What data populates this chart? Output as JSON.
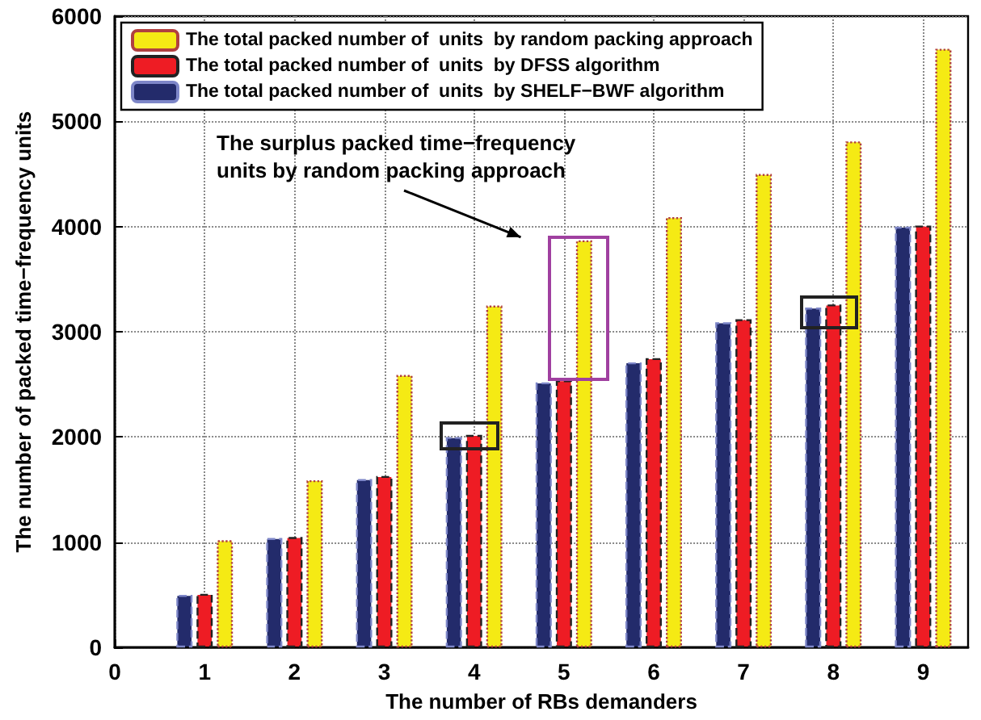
{
  "chart_data": {
    "type": "bar",
    "xlabel": "The number of RBs demanders",
    "ylabel": "The number of packed time−frequency units",
    "x": [
      1,
      2,
      3,
      4,
      5,
      6,
      7,
      8,
      9
    ],
    "series": [
      {
        "name": "The total packed number of  units  by SHELF−BWF algorithm",
        "color": "#232b6b",
        "values": [
          500,
          1040,
          1600,
          2000,
          2520,
          2710,
          3090,
          3230,
          4000
        ]
      },
      {
        "name": "The total packed number of  units  by DFSS algorithm",
        "color": "#ee1c24",
        "values": [
          510,
          1050,
          1630,
          2020,
          2540,
          2750,
          3120,
          3260,
          4010
        ]
      },
      {
        "name": "The total packed number of  units  by random packing approach",
        "color": "#f5ea14",
        "values": [
          1020,
          1590,
          2590,
          3250,
          3870,
          4090,
          4500,
          4810,
          5690
        ]
      }
    ],
    "xlim": [
      0,
      9.5
    ],
    "xticks": [
      0,
      1,
      2,
      3,
      4,
      5,
      6,
      7,
      8,
      9
    ],
    "ylim": [
      0,
      6000
    ],
    "yticks": [
      0,
      1000,
      2000,
      3000,
      4000,
      5000,
      6000
    ],
    "grid": true,
    "legend": "top left",
    "annotations": [
      "The surplus packed time−frequency units by random packing approach"
    ]
  }
}
